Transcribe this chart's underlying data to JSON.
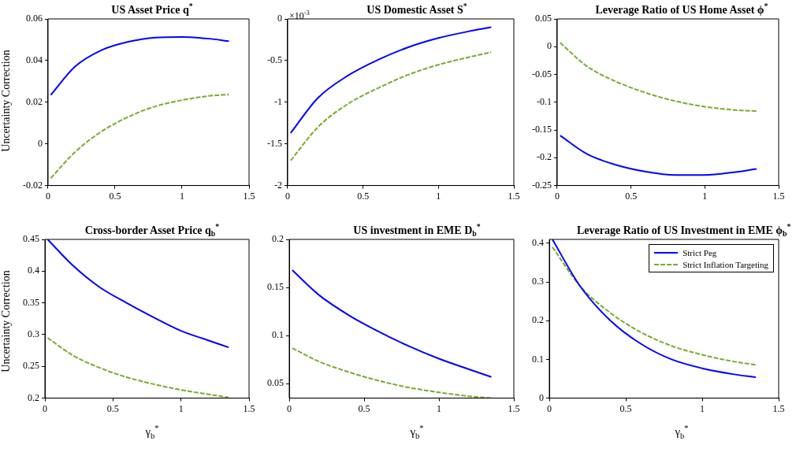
{
  "chart_data": [
    {
      "type": "line",
      "title": "US Asset Price q$^{*}$",
      "ylabel": "Uncertainty Correction",
      "x": [
        0.02,
        0.2,
        0.4,
        0.6,
        0.8,
        1.0,
        1.2,
        1.35
      ],
      "xlim": [
        0,
        1.5
      ],
      "xticks": [
        0,
        0.5,
        1,
        1.5
      ],
      "ylim": [
        -0.02,
        0.06
      ],
      "yticks": [
        -0.02,
        0,
        0.02,
        0.04,
        0.06
      ],
      "grid": false,
      "legend": false,
      "marker": "none",
      "series": [
        {
          "color": "#0000ff",
          "line_style": "solid",
          "values": [
            0.0235,
            0.037,
            0.045,
            0.049,
            0.051,
            0.0513,
            0.0505,
            0.0493
          ]
        },
        {
          "color": "#77ac30",
          "line_style": "dashed",
          "values": [
            -0.0165,
            -0.004,
            0.006,
            0.013,
            0.018,
            0.021,
            0.023,
            0.0237
          ]
        }
      ]
    },
    {
      "type": "line",
      "title": "US Domestic Asset S$^{*}$",
      "annotations": [
        "×10$^{-3}$"
      ],
      "x": [
        0.02,
        0.2,
        0.4,
        0.6,
        0.8,
        1.0,
        1.2,
        1.35
      ],
      "xlim": [
        0,
        1.5
      ],
      "xticks": [
        0,
        0.5,
        1,
        1.5
      ],
      "ylim": [
        -2,
        0
      ],
      "yticks": [
        -2,
        -1.5,
        -1,
        -0.5,
        0
      ],
      "grid": false,
      "legend": false,
      "marker": "none",
      "series": [
        {
          "color": "#0000ff",
          "line_style": "solid",
          "values": [
            -1.37,
            -0.95,
            -0.68,
            -0.49,
            -0.34,
            -0.23,
            -0.15,
            -0.1
          ]
        },
        {
          "color": "#77ac30",
          "line_style": "dashed",
          "values": [
            -1.7,
            -1.3,
            -1.02,
            -0.83,
            -0.67,
            -0.55,
            -0.46,
            -0.4
          ]
        }
      ]
    },
    {
      "type": "line",
      "title": "Leverage Ratio of US Home Asset ϕ$^{*}$",
      "x": [
        0.02,
        0.2,
        0.4,
        0.6,
        0.8,
        1.0,
        1.2,
        1.35
      ],
      "xlim": [
        0,
        1.5
      ],
      "xticks": [
        0,
        0.5,
        1,
        1.5
      ],
      "ylim": [
        -0.25,
        0.05
      ],
      "yticks": [
        -0.25,
        -0.2,
        -0.15,
        -0.1,
        -0.05,
        0,
        0.05
      ],
      "grid": false,
      "legend": false,
      "marker": "none",
      "series": [
        {
          "color": "#0000ff",
          "line_style": "solid",
          "values": [
            -0.16,
            -0.193,
            -0.213,
            -0.225,
            -0.231,
            -0.231,
            -0.226,
            -0.22
          ]
        },
        {
          "color": "#77ac30",
          "line_style": "dashed",
          "values": [
            0.007,
            -0.035,
            -0.063,
            -0.083,
            -0.098,
            -0.108,
            -0.114,
            -0.116
          ]
        }
      ]
    },
    {
      "type": "line",
      "title": "Cross-border Asset Price q$_{b}$$^{*}$",
      "ylabel": "Uncertainty Correction",
      "xlabel": "γ$_{b}$$^{*}$",
      "x": [
        0.02,
        0.2,
        0.4,
        0.6,
        0.8,
        1.0,
        1.2,
        1.35
      ],
      "xlim": [
        0,
        1.5
      ],
      "xticks": [
        0,
        0.5,
        1,
        1.5
      ],
      "ylim": [
        0.2,
        0.45
      ],
      "yticks": [
        0.2,
        0.25,
        0.3,
        0.35,
        0.4,
        0.45
      ],
      "grid": false,
      "legend": false,
      "marker": "none",
      "series": [
        {
          "color": "#0000ff",
          "line_style": "solid",
          "values": [
            0.45,
            0.41,
            0.375,
            0.35,
            0.327,
            0.306,
            0.291,
            0.28
          ]
        },
        {
          "color": "#77ac30",
          "line_style": "dashed",
          "values": [
            0.295,
            0.268,
            0.248,
            0.233,
            0.222,
            0.213,
            0.206,
            0.201
          ]
        }
      ]
    },
    {
      "type": "line",
      "title": "US investment in EME D$_{b}$$^{*}$",
      "xlabel": "γ$_{b}$$^{*}$",
      "x": [
        0.02,
        0.2,
        0.4,
        0.6,
        0.8,
        1.0,
        1.2,
        1.35
      ],
      "xlim": [
        0,
        1.5
      ],
      "xticks": [
        0,
        0.5,
        1,
        1.5
      ],
      "ylim": [
        0.035,
        0.2
      ],
      "yticks": [
        0.05,
        0.1,
        0.15,
        0.2
      ],
      "grid": false,
      "legend": false,
      "marker": "none",
      "series": [
        {
          "color": "#0000ff",
          "line_style": "solid",
          "values": [
            0.168,
            0.142,
            0.121,
            0.104,
            0.089,
            0.076,
            0.065,
            0.057
          ]
        },
        {
          "color": "#77ac30",
          "line_style": "dashed",
          "values": [
            0.087,
            0.073,
            0.062,
            0.053,
            0.046,
            0.041,
            0.037,
            0.035
          ]
        }
      ]
    },
    {
      "type": "line",
      "title": "Leverage Ratio of US Investment in EME ϕ$_{b}$$^{*}$",
      "xlabel": "γ$_{b}$$^{*}$",
      "x": [
        0.02,
        0.2,
        0.4,
        0.6,
        0.8,
        1.0,
        1.2,
        1.35
      ],
      "xlim": [
        0,
        1.5
      ],
      "xticks": [
        0,
        0.5,
        1,
        1.5
      ],
      "ylim": [
        0,
        0.41
      ],
      "yticks": [
        0,
        0.1,
        0.2,
        0.3,
        0.4
      ],
      "grid": false,
      "legend": "top right",
      "marker": "none",
      "series": [
        {
          "name": "Strict Peg",
          "color": "#0000ff",
          "line_style": "solid",
          "values": [
            0.41,
            0.29,
            0.2,
            0.14,
            0.1,
            0.077,
            0.062,
            0.054
          ]
        },
        {
          "name": "Strict Inflation Targeting",
          "color": "#77ac30",
          "line_style": "dashed",
          "values": [
            0.39,
            0.29,
            0.22,
            0.17,
            0.135,
            0.112,
            0.095,
            0.086
          ]
        }
      ]
    }
  ]
}
